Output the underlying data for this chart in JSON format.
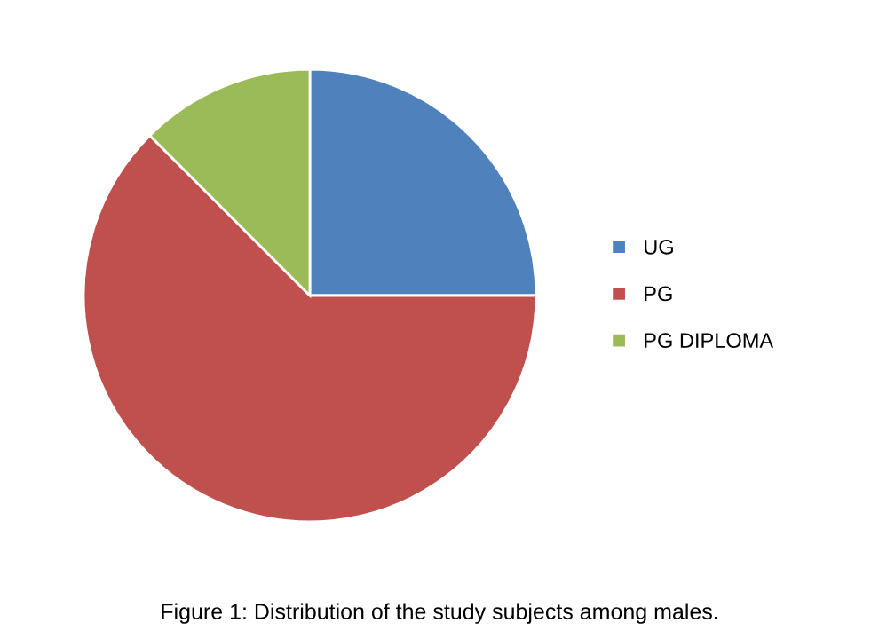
{
  "chart_data": {
    "type": "pie",
    "categories": [
      "UG",
      "PG",
      "PG DIPLOMA"
    ],
    "values": [
      25,
      62.5,
      12.5
    ],
    "colors": [
      "#4f81bd",
      "#c0504d",
      "#9bbb59"
    ],
    "legend": "right",
    "annotations": [
      "Figure 1: Distribution of the study subjects among males."
    ]
  }
}
